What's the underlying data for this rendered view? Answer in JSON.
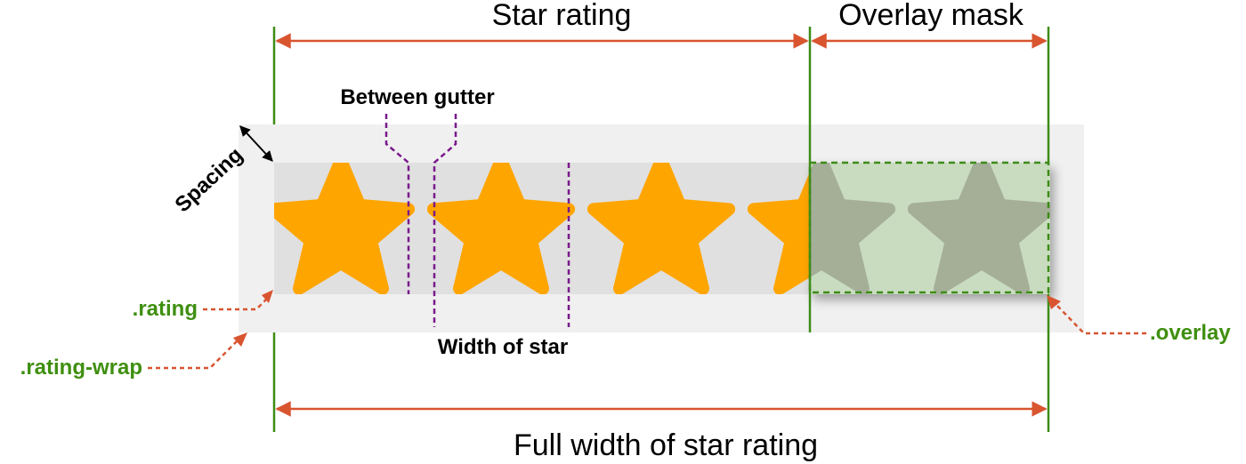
{
  "labels": {
    "star_rating": "Star rating",
    "overlay_mask": "Overlay mask",
    "between_gutter": "Between gutter",
    "spacing": "Spacing",
    "width_of_star": "Width of star",
    "full_width": "Full width of star rating",
    "rating_class": ".rating",
    "rating_wrap_class": ".rating-wrap",
    "overlay_class": ".overlay"
  },
  "colors": {
    "star": "#ffa500",
    "masked_star": "#a5af98",
    "wrap_bg": "#f0f0f0",
    "rating_bg": "#e0e0e0",
    "overlay_fill": "#c9dcc0",
    "guide_green": "#3d8c18",
    "label_green": "#3f8f10",
    "arrow_orange": "#d85530",
    "gutter_purple": "#7a1a8c"
  },
  "stars": [
    {
      "name": "star-1",
      "masked": false
    },
    {
      "name": "star-2",
      "masked": false
    },
    {
      "name": "star-3",
      "masked": false
    },
    {
      "name": "star-4",
      "masked": false
    },
    {
      "name": "star-5",
      "masked": true
    },
    {
      "name": "star-6",
      "masked": true
    }
  ]
}
